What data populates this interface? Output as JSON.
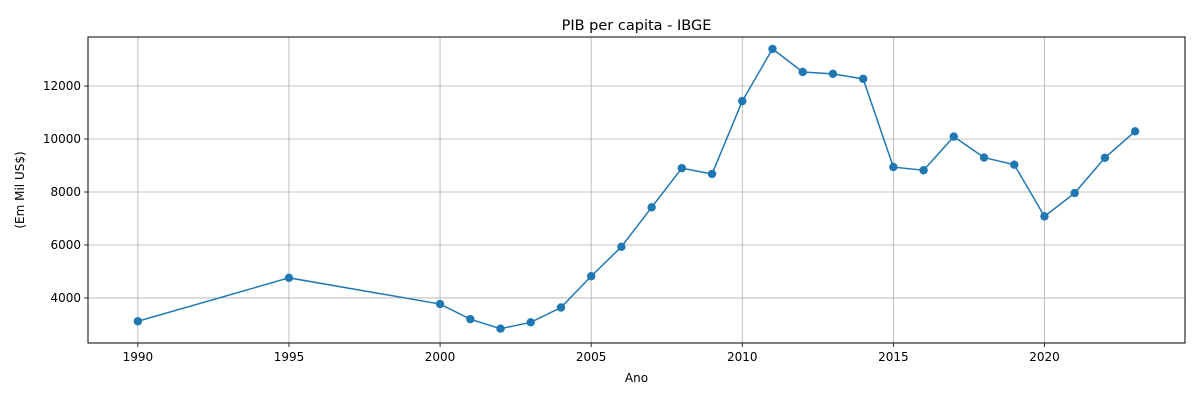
{
  "chart_data": {
    "type": "line",
    "title": "PIB per capita - IBGE",
    "xlabel": "Ano",
    "ylabel": "(Em Mil US$)",
    "xlim": [
      1988.35,
      1994.65
    ],
    "ylim": [
      2300,
      13850
    ],
    "xticks": [
      1990,
      1995,
      2000,
      2005,
      2010,
      2015,
      2020
    ],
    "yticks": [
      4000,
      6000,
      8000,
      10000,
      12000
    ],
    "grid": true,
    "series": [
      {
        "color": "#1f77b4",
        "marker": "circle",
        "x": [
          1990,
          1995,
          2000,
          2001,
          2002,
          2003,
          2004,
          2005,
          2006,
          2007,
          2008,
          2009,
          2010,
          2011,
          2012,
          2013,
          2014,
          2015,
          2016,
          2017,
          2018,
          2019,
          2020,
          2021,
          2022,
          2023
        ],
        "y": [
          3120,
          4760,
          3770,
          3200,
          2840,
          3080,
          3640,
          4820,
          5930,
          7420,
          8900,
          8680,
          11430,
          13400,
          12530,
          12460,
          12270,
          8940,
          8820,
          10090,
          9300,
          9030,
          7080,
          7960,
          9290,
          10290
        ]
      }
    ]
  }
}
